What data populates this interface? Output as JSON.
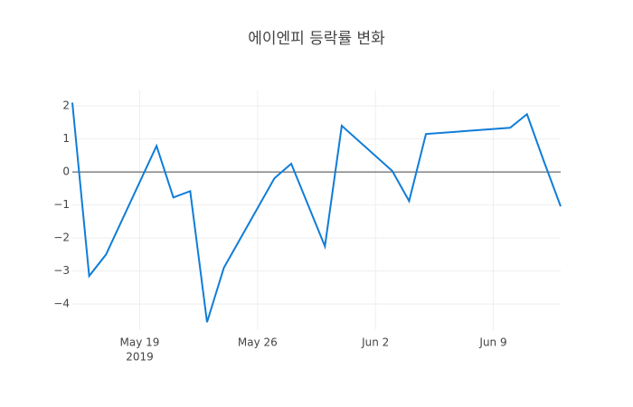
{
  "chart_data": {
    "type": "line",
    "title": "에이엔피 등락률 변화",
    "x": [
      "2019-05-15",
      "2019-05-16",
      "2019-05-17",
      "2019-05-20",
      "2019-05-21",
      "2019-05-22",
      "2019-05-23",
      "2019-05-24",
      "2019-05-27",
      "2019-05-28",
      "2019-05-30",
      "2019-05-31",
      "2019-06-03",
      "2019-06-04",
      "2019-06-05",
      "2019-06-10",
      "2019-06-11",
      "2019-06-12",
      "2019-06-13"
    ],
    "series": [
      {
        "color": "#0f7dd8",
        "values": [
          2.1,
          -3.15,
          -2.5,
          0.79,
          -0.77,
          -0.58,
          -4.55,
          -2.9,
          -0.19,
          0.25,
          -2.25,
          1.4,
          0.03,
          -0.88,
          1.15,
          1.34,
          1.75,
          0.33,
          -1.04
        ]
      }
    ],
    "xlim": [
      "2019-05-15",
      "2019-06-13"
    ],
    "xticks": [
      {
        "value": "2019-05-19",
        "label": "May 19"
      },
      {
        "value": "2019-05-26",
        "label": "May 26"
      },
      {
        "value": "2019-06-02",
        "label": "Jun 2"
      },
      {
        "value": "2019-06-09",
        "label": "Jun 9"
      }
    ],
    "x_year_label": "2019",
    "ylim": [
      -4.79,
      2.47
    ],
    "yticks": [
      2,
      1,
      0,
      {
        "value": -1,
        "label": "−1"
      },
      {
        "value": -2,
        "label": "−2"
      },
      {
        "value": -3,
        "label": "−3"
      },
      {
        "value": -4,
        "label": "−4"
      }
    ],
    "grid": true,
    "zeroline": true
  }
}
